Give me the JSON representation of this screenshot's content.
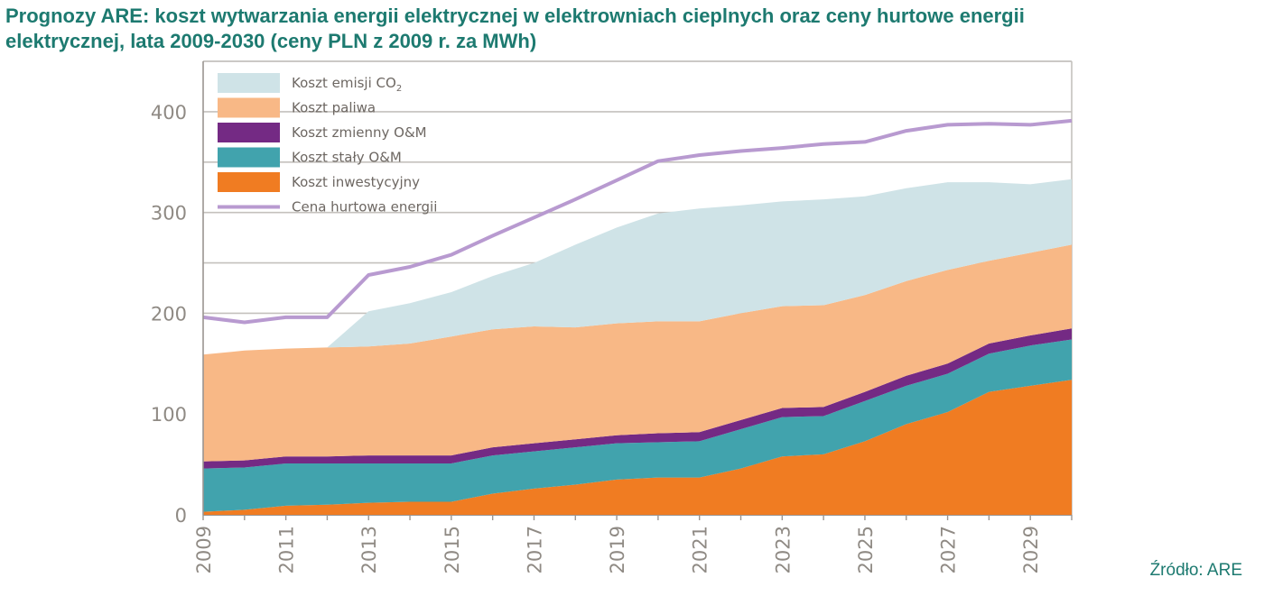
{
  "title": {
    "line1": "Prognozy ARE: koszt wytwarzania energii elektrycznej w elektrowniach cieplnych oraz ceny hurtowe energii",
    "line2": "elektrycznej, lata 2009-2030 (ceny PLN z 2009 r. za MWh)"
  },
  "source": "Źródło: ARE",
  "chart_data": {
    "type": "area",
    "x": [
      2009,
      2010,
      2011,
      2012,
      2013,
      2014,
      2015,
      2016,
      2017,
      2018,
      2019,
      2020,
      2021,
      2022,
      2023,
      2024,
      2025,
      2026,
      2027,
      2028,
      2029,
      2030
    ],
    "x_tick_labels": [
      "2009",
      "2011",
      "2013",
      "2015",
      "2017",
      "2019",
      "2021",
      "2023",
      "2025",
      "2027",
      "2029"
    ],
    "y_ticks": [
      0,
      100,
      200,
      300,
      400
    ],
    "ylim": [
      0,
      450
    ],
    "gridlines": [
      0,
      50,
      100,
      150,
      200,
      250,
      300,
      350,
      400,
      450
    ],
    "legend_position": "top-left",
    "stacked_series": [
      {
        "name": "Koszt inwestycyjny",
        "color": "#f07c22",
        "values": [
          3,
          5,
          9,
          10,
          12,
          13,
          13,
          21,
          26,
          30,
          35,
          37,
          37,
          46,
          58,
          60,
          73,
          90,
          102,
          122,
          128,
          134
        ]
      },
      {
        "name": "Koszt stały O&M",
        "color": "#41a3ad",
        "values": [
          43,
          42,
          42,
          41,
          39,
          38,
          38,
          38,
          37,
          37,
          36,
          35,
          36,
          39,
          39,
          38,
          40,
          38,
          38,
          38,
          40,
          40
        ]
      },
      {
        "name": "Koszt zmienny O&M",
        "color": "#742a84",
        "values": [
          7,
          7,
          7,
          7,
          8,
          8,
          8,
          8,
          8,
          8,
          8,
          9,
          9,
          9,
          9,
          9,
          9,
          10,
          10,
          10,
          10,
          11
        ]
      },
      {
        "name": "Koszt paliwa",
        "color": "#f8b886",
        "values": [
          106,
          109,
          107,
          108,
          108,
          111,
          118,
          117,
          116,
          111,
          111,
          111,
          110,
          106,
          101,
          101,
          96,
          94,
          93,
          82,
          82,
          83
        ]
      },
      {
        "name": "Koszt emisji CO₂",
        "color": "#cfe3e7",
        "values": [
          0,
          0,
          0,
          0,
          35,
          40,
          44,
          53,
          63,
          82,
          95,
          107,
          112,
          107,
          104,
          105,
          98,
          92,
          87,
          78,
          68,
          65
        ]
      }
    ],
    "line_series": [
      {
        "name": "Cena hurtowa energii",
        "color": "#b89ad0",
        "values": [
          196,
          191,
          196,
          196,
          238,
          246,
          258,
          277,
          295,
          313,
          332,
          351,
          357,
          361,
          364,
          368,
          370,
          381,
          387,
          388,
          387,
          391
        ]
      }
    ]
  },
  "legend": {
    "items": [
      {
        "label": "Koszt emisji CO",
        "sub": "2",
        "color": "#cfe3e7",
        "kind": "box"
      },
      {
        "label": "Koszt paliwa",
        "sub": "",
        "color": "#f8b886",
        "kind": "box"
      },
      {
        "label": "Koszt zmienny O&M",
        "sub": "",
        "color": "#742a84",
        "kind": "box"
      },
      {
        "label": "Koszt stały O&M",
        "sub": "",
        "color": "#41a3ad",
        "kind": "box"
      },
      {
        "label": "Koszt inwestycyjny",
        "sub": "",
        "color": "#f07c22",
        "kind": "box"
      },
      {
        "label": "Cena hurtowa energii",
        "sub": "",
        "color": "#b89ad0",
        "kind": "line"
      }
    ]
  }
}
